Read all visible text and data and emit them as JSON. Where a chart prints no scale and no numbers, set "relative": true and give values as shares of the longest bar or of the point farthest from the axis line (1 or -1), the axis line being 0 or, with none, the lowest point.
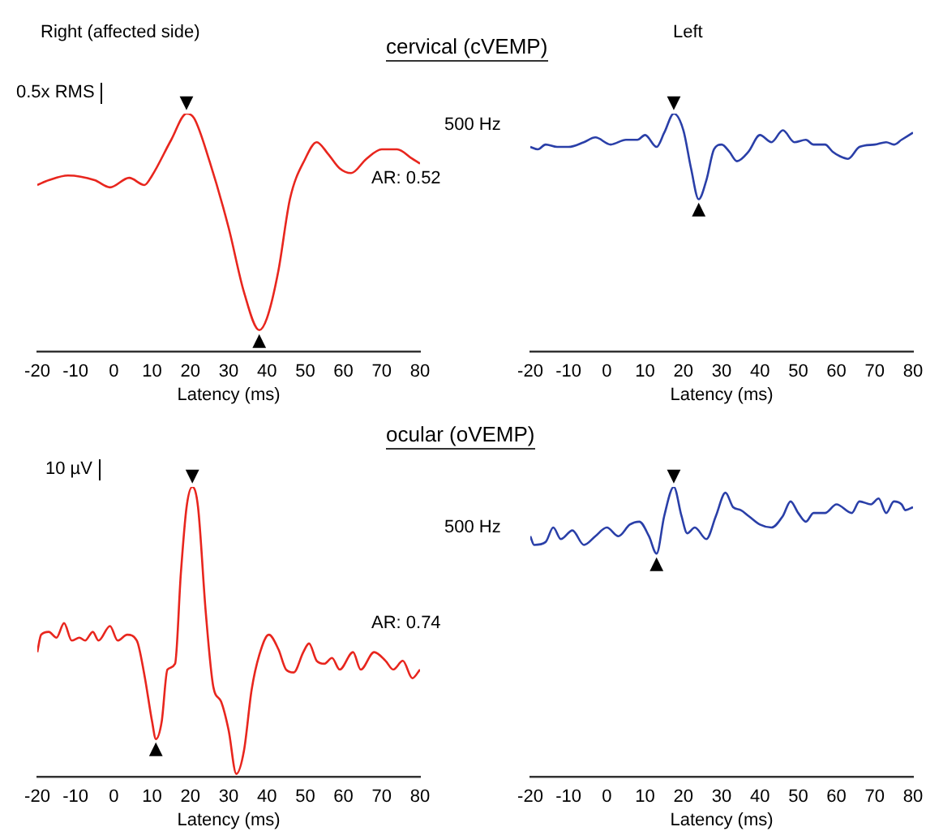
{
  "chart_data": [
    {
      "type": "line",
      "relative": true,
      "title": "Right (affected side)",
      "xlabel": "Latency (ms)",
      "color": "#e8261e",
      "x": [
        -20,
        -17,
        -12,
        -5,
        -1,
        4,
        8,
        10,
        15,
        19,
        21,
        25,
        30,
        34,
        38,
        40,
        43,
        46,
        50,
        53,
        56,
        59,
        62,
        66,
        70,
        74,
        78,
        80
      ],
      "values": [
        0.7,
        0.72,
        0.74,
        0.72,
        0.69,
        0.73,
        0.7,
        0.74,
        0.89,
        1.0,
        0.98,
        0.8,
        0.52,
        0.25,
        0.09,
        0.14,
        0.34,
        0.64,
        0.81,
        0.88,
        0.83,
        0.77,
        0.75,
        0.81,
        0.85,
        0.85,
        0.81,
        0.79
      ],
      "xlim": [
        -20,
        80
      ],
      "xticks": [
        -20,
        -10,
        0,
        10,
        20,
        30,
        40,
        50,
        60,
        70,
        80
      ],
      "annotations": [
        "cervical (cVEMP)",
        "0.5x RMS",
        "AR: 0.52",
        {
          "text": "▼",
          "x": 19,
          "y": 1.0
        },
        {
          "text": "▲",
          "x": 38,
          "y": 0.09
        }
      ]
    },
    {
      "type": "line",
      "relative": true,
      "title": "Left",
      "xlabel": "Latency (ms)",
      "color": "#2a3fa8",
      "x": [
        -20,
        -18,
        -16,
        -13,
        -10,
        -6,
        -3,
        1,
        5,
        8,
        10,
        13,
        15,
        17.5,
        20,
        22,
        24,
        26,
        28,
        30,
        32,
        34,
        37,
        40,
        43,
        46,
        49,
        52,
        54,
        57,
        59,
        61,
        63,
        66,
        70,
        73,
        75,
        77,
        80
      ],
      "values": [
        0.86,
        0.85,
        0.87,
        0.86,
        0.86,
        0.88,
        0.9,
        0.87,
        0.89,
        0.89,
        0.91,
        0.86,
        0.92,
        1.0,
        0.93,
        0.77,
        0.64,
        0.72,
        0.85,
        0.87,
        0.84,
        0.8,
        0.84,
        0.91,
        0.88,
        0.93,
        0.88,
        0.89,
        0.87,
        0.87,
        0.84,
        0.82,
        0.81,
        0.86,
        0.87,
        0.88,
        0.87,
        0.89,
        0.92
      ],
      "xlim": [
        -20,
        80
      ],
      "xticks": [
        -20,
        -10,
        0,
        10,
        20,
        30,
        40,
        50,
        60,
        70,
        80
      ],
      "annotations": [
        "500 Hz",
        {
          "text": "▼",
          "x": 17.5,
          "y": 1.0
        },
        {
          "text": "▲",
          "x": 24,
          "y": 0.64
        }
      ]
    },
    {
      "type": "line",
      "relative": true,
      "xlabel": "Latency (ms)",
      "color": "#e8261e",
      "x": [
        -20,
        -19,
        -17,
        -15,
        -13,
        -11,
        -9,
        -7.5,
        -5.5,
        -4,
        -1,
        1,
        3.5,
        6,
        8,
        10,
        11,
        12.5,
        14,
        16,
        17.5,
        19,
        20.5,
        22,
        24,
        26,
        28,
        30,
        32,
        34,
        36,
        38,
        40.5,
        43,
        45,
        47,
        49.5,
        51,
        53,
        55,
        57,
        59,
        62.5,
        64.5,
        68,
        71,
        73,
        75.5,
        78,
        80
      ],
      "values": [
        0.43,
        0.49,
        0.5,
        0.48,
        0.53,
        0.47,
        0.48,
        0.47,
        0.5,
        0.47,
        0.52,
        0.47,
        0.49,
        0.47,
        0.35,
        0.19,
        0.13,
        0.19,
        0.37,
        0.39,
        0.7,
        0.93,
        1.0,
        0.93,
        0.57,
        0.31,
        0.26,
        0.16,
        0.01,
        0.09,
        0.3,
        0.42,
        0.49,
        0.44,
        0.37,
        0.36,
        0.43,
        0.46,
        0.4,
        0.39,
        0.41,
        0.37,
        0.43,
        0.37,
        0.43,
        0.4,
        0.37,
        0.4,
        0.34,
        0.37
      ],
      "xlim": [
        -20,
        80
      ],
      "xticks": [
        -20,
        -10,
        0,
        10,
        20,
        30,
        40,
        50,
        60,
        70,
        80
      ],
      "annotations": [
        "ocular (oVEMP)",
        "10 µV",
        "AR: 0.74",
        {
          "text": "▼",
          "x": 20.5,
          "y": 1.0
        },
        {
          "text": "▲",
          "x": 11,
          "y": 0.13
        }
      ]
    },
    {
      "type": "line",
      "relative": true,
      "xlabel": "Latency (ms)",
      "color": "#2a3fa8",
      "x": [
        -20,
        -19,
        -16,
        -14,
        -12,
        -9,
        -6,
        -3,
        0,
        3,
        6,
        8.5,
        11,
        13,
        15,
        17.5,
        19.5,
        21,
        23,
        26,
        28.5,
        31,
        33,
        35,
        37,
        40,
        43,
        46,
        48,
        50,
        52,
        54,
        57,
        60,
        64,
        66,
        69,
        71,
        73,
        75,
        77,
        78,
        80
      ],
      "values": [
        0.83,
        0.8,
        0.81,
        0.86,
        0.82,
        0.85,
        0.8,
        0.83,
        0.86,
        0.83,
        0.87,
        0.88,
        0.83,
        0.77,
        0.9,
        1.0,
        0.9,
        0.84,
        0.86,
        0.82,
        0.9,
        0.98,
        0.93,
        0.92,
        0.9,
        0.87,
        0.86,
        0.9,
        0.95,
        0.91,
        0.88,
        0.91,
        0.91,
        0.94,
        0.91,
        0.95,
        0.94,
        0.96,
        0.91,
        0.95,
        0.94,
        0.92,
        0.93
      ],
      "xlim": [
        -20,
        80
      ],
      "xticks": [
        -20,
        -10,
        0,
        10,
        20,
        30,
        40,
        50,
        60,
        70,
        80
      ],
      "annotations": [
        "500 Hz",
        {
          "text": "▼",
          "x": 17.5,
          "y": 1.0
        },
        {
          "text": "▲",
          "x": 13,
          "y": 0.77
        }
      ]
    }
  ]
}
